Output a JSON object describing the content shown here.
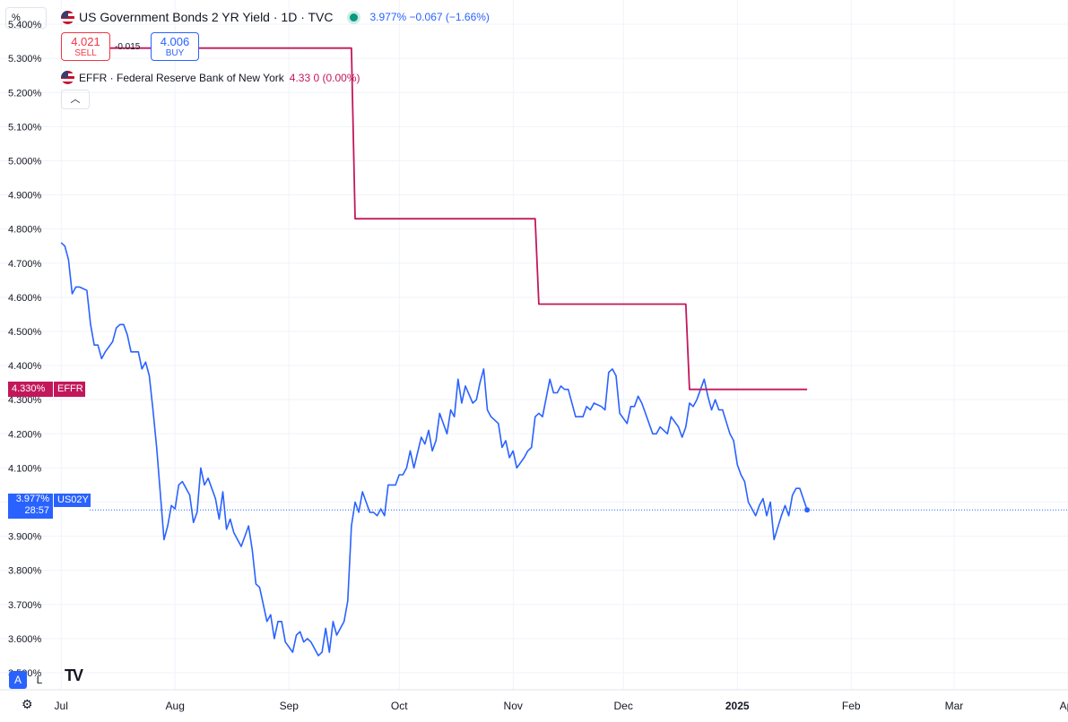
{
  "unit_selector": "%",
  "header": {
    "title": "US Government Bonds 2 YR Yield · 1D · TVC",
    "status_color": "#089981",
    "quote": "3.977%  −0.067 (−1.66%)",
    "quote_color": "#2962ff"
  },
  "trade": {
    "sell_price": "4.021",
    "sell_label": "SELL",
    "spread": "-0.015",
    "buy_price": "4.006",
    "buy_label": "BUY"
  },
  "indicator": {
    "label": "EFFR · Federal Reserve Bank of New York",
    "values": "4.33  0 (0.00%)",
    "color": "#c2185b"
  },
  "collapse_icon": "chevron-up-icon",
  "tags": {
    "effr_value": "4.330%",
    "effr_name": "EFFR",
    "us02y_value": "3.977%",
    "us02y_countdown": "28:57",
    "us02y_name": "US02Y"
  },
  "bottom": {
    "auto_label": "A",
    "log_label": "L",
    "logo_text": "TV",
    "settings_icon": "gear-icon"
  },
  "chart_data": {
    "type": "line",
    "ylim": [
      3.45,
      5.45
    ],
    "y_ticks": [
      3.5,
      3.6,
      3.7,
      3.8,
      3.9,
      4.0,
      4.1,
      4.2,
      4.3,
      4.4,
      4.5,
      4.6,
      4.7,
      4.8,
      4.9,
      5.0,
      5.1,
      5.2,
      5.3,
      5.4
    ],
    "y_tick_labels": [
      "3.500%",
      "3.600%",
      "3.700%",
      "3.800%",
      "3.900%",
      "4.000%",
      "4.100%",
      "4.200%",
      "4.300%",
      "4.400%",
      "4.500%",
      "4.600%",
      "4.700%",
      "4.800%",
      "4.900%",
      "5.000%",
      "5.100%",
      "5.200%",
      "5.300%",
      "5.400%"
    ],
    "x_domain": [
      "2024-06-29",
      "2025-04-01"
    ],
    "x_ticks": [
      {
        "date": "2024-07-01",
        "label": "Jul",
        "bold": false
      },
      {
        "date": "2024-08-01",
        "label": "Aug",
        "bold": false
      },
      {
        "date": "2024-09-01",
        "label": "Sep",
        "bold": false
      },
      {
        "date": "2024-10-01",
        "label": "Oct",
        "bold": false
      },
      {
        "date": "2024-11-01",
        "label": "Nov",
        "bold": false
      },
      {
        "date": "2024-12-01",
        "label": "Dec",
        "bold": false
      },
      {
        "date": "2025-01-01",
        "label": "2025",
        "bold": true
      },
      {
        "date": "2025-02-01",
        "label": "Feb",
        "bold": false
      },
      {
        "date": "2025-03-01",
        "label": "Mar",
        "bold": false
      },
      {
        "date": "2025-04-01",
        "label": "Apr",
        "bold": false
      }
    ],
    "grid": true,
    "series": [
      {
        "name": "US02Y",
        "color": "#2962ff",
        "points": [
          [
            "2024-07-01",
            4.76
          ],
          [
            "2024-07-02",
            4.75
          ],
          [
            "2024-07-03",
            4.71
          ],
          [
            "2024-07-04",
            4.61
          ],
          [
            "2024-07-05",
            4.63
          ],
          [
            "2024-07-06",
            4.63
          ],
          [
            "2024-07-08",
            4.62
          ],
          [
            "2024-07-09",
            4.52
          ],
          [
            "2024-07-10",
            4.46
          ],
          [
            "2024-07-11",
            4.46
          ],
          [
            "2024-07-12",
            4.42
          ],
          [
            "2024-07-13",
            4.44
          ],
          [
            "2024-07-15",
            4.47
          ],
          [
            "2024-07-16",
            4.51
          ],
          [
            "2024-07-17",
            4.52
          ],
          [
            "2024-07-18",
            4.52
          ],
          [
            "2024-07-19",
            4.49
          ],
          [
            "2024-07-20",
            4.44
          ],
          [
            "2024-07-22",
            4.44
          ],
          [
            "2024-07-23",
            4.39
          ],
          [
            "2024-07-24",
            4.41
          ],
          [
            "2024-07-25",
            4.37
          ],
          [
            "2024-07-26",
            4.27
          ],
          [
            "2024-07-27",
            4.16
          ],
          [
            "2024-07-29",
            3.89
          ],
          [
            "2024-07-30",
            3.93
          ],
          [
            "2024-07-31",
            3.99
          ],
          [
            "2024-08-01",
            3.98
          ],
          [
            "2024-08-02",
            4.05
          ],
          [
            "2024-08-03",
            4.06
          ],
          [
            "2024-08-05",
            4.02
          ],
          [
            "2024-08-06",
            3.94
          ],
          [
            "2024-08-07",
            3.97
          ],
          [
            "2024-08-08",
            4.1
          ],
          [
            "2024-08-09",
            4.05
          ],
          [
            "2024-08-10",
            4.07
          ],
          [
            "2024-08-12",
            4.01
          ],
          [
            "2024-08-13",
            3.95
          ],
          [
            "2024-08-14",
            4.03
          ],
          [
            "2024-08-15",
            3.92
          ],
          [
            "2024-08-16",
            3.95
          ],
          [
            "2024-08-17",
            3.91
          ],
          [
            "2024-08-19",
            3.87
          ],
          [
            "2024-08-20",
            3.9
          ],
          [
            "2024-08-21",
            3.93
          ],
          [
            "2024-08-22",
            3.86
          ],
          [
            "2024-08-23",
            3.76
          ],
          [
            "2024-08-24",
            3.75
          ],
          [
            "2024-08-26",
            3.65
          ],
          [
            "2024-08-27",
            3.67
          ],
          [
            "2024-08-28",
            3.6
          ],
          [
            "2024-08-29",
            3.65
          ],
          [
            "2024-08-30",
            3.65
          ],
          [
            "2024-08-31",
            3.59
          ],
          [
            "2024-09-02",
            3.56
          ],
          [
            "2024-09-03",
            3.61
          ],
          [
            "2024-09-04",
            3.62
          ],
          [
            "2024-09-05",
            3.59
          ],
          [
            "2024-09-06",
            3.6
          ],
          [
            "2024-09-07",
            3.59
          ],
          [
            "2024-09-09",
            3.55
          ],
          [
            "2024-09-10",
            3.56
          ],
          [
            "2024-09-11",
            3.63
          ],
          [
            "2024-09-12",
            3.56
          ],
          [
            "2024-09-13",
            3.65
          ],
          [
            "2024-09-14",
            3.61
          ],
          [
            "2024-09-16",
            3.65
          ],
          [
            "2024-09-17",
            3.71
          ],
          [
            "2024-09-18",
            3.93
          ],
          [
            "2024-09-19",
            4.0
          ],
          [
            "2024-09-20",
            3.97
          ],
          [
            "2024-09-21",
            4.03
          ],
          [
            "2024-09-23",
            3.97
          ],
          [
            "2024-09-24",
            3.97
          ],
          [
            "2024-09-25",
            3.96
          ],
          [
            "2024-09-26",
            3.98
          ],
          [
            "2024-09-27",
            3.96
          ],
          [
            "2024-09-28",
            4.05
          ],
          [
            "2024-09-30",
            4.05
          ],
          [
            "2024-10-01",
            4.08
          ],
          [
            "2024-10-02",
            4.08
          ],
          [
            "2024-10-03",
            4.1
          ],
          [
            "2024-10-04",
            4.15
          ],
          [
            "2024-10-05",
            4.1
          ],
          [
            "2024-10-07",
            4.19
          ],
          [
            "2024-10-08",
            4.17
          ],
          [
            "2024-10-09",
            4.21
          ],
          [
            "2024-10-10",
            4.15
          ],
          [
            "2024-10-11",
            4.18
          ],
          [
            "2024-10-12",
            4.26
          ],
          [
            "2024-10-14",
            4.2
          ],
          [
            "2024-10-15",
            4.27
          ],
          [
            "2024-10-16",
            4.25
          ],
          [
            "2024-10-17",
            4.36
          ],
          [
            "2024-10-18",
            4.29
          ],
          [
            "2024-10-19",
            4.34
          ],
          [
            "2024-10-21",
            4.29
          ],
          [
            "2024-10-22",
            4.3
          ],
          [
            "2024-10-23",
            4.35
          ],
          [
            "2024-10-24",
            4.39
          ],
          [
            "2024-10-25",
            4.27
          ],
          [
            "2024-10-26",
            4.25
          ],
          [
            "2024-10-28",
            4.23
          ],
          [
            "2024-10-29",
            4.16
          ],
          [
            "2024-10-30",
            4.18
          ],
          [
            "2024-10-31",
            4.13
          ],
          [
            "2024-11-01",
            4.15
          ],
          [
            "2024-11-02",
            4.1
          ],
          [
            "2024-11-04",
            4.13
          ],
          [
            "2024-11-05",
            4.15
          ],
          [
            "2024-11-06",
            4.16
          ],
          [
            "2024-11-07",
            4.25
          ],
          [
            "2024-11-08",
            4.26
          ],
          [
            "2024-11-09",
            4.25
          ],
          [
            "2024-11-11",
            4.36
          ],
          [
            "2024-11-12",
            4.32
          ],
          [
            "2024-11-13",
            4.32
          ],
          [
            "2024-11-14",
            4.34
          ],
          [
            "2024-11-15",
            4.33
          ],
          [
            "2024-11-16",
            4.33
          ],
          [
            "2024-11-18",
            4.25
          ],
          [
            "2024-11-19",
            4.25
          ],
          [
            "2024-11-20",
            4.25
          ],
          [
            "2024-11-21",
            4.28
          ],
          [
            "2024-11-22",
            4.27
          ],
          [
            "2024-11-23",
            4.29
          ],
          [
            "2024-11-25",
            4.28
          ],
          [
            "2024-11-26",
            4.27
          ],
          [
            "2024-11-27",
            4.38
          ],
          [
            "2024-11-28",
            4.39
          ],
          [
            "2024-11-29",
            4.37
          ],
          [
            "2024-11-30",
            4.26
          ],
          [
            "2024-12-02",
            4.23
          ],
          [
            "2024-12-03",
            4.28
          ],
          [
            "2024-12-04",
            4.28
          ],
          [
            "2024-12-05",
            4.31
          ],
          [
            "2024-12-06",
            4.29
          ],
          [
            "2024-12-07",
            4.26
          ],
          [
            "2024-12-09",
            4.2
          ],
          [
            "2024-12-10",
            4.2
          ],
          [
            "2024-12-11",
            4.22
          ],
          [
            "2024-12-12",
            4.21
          ],
          [
            "2024-12-13",
            4.2
          ],
          [
            "2024-12-14",
            4.25
          ],
          [
            "2024-12-16",
            4.22
          ],
          [
            "2024-12-17",
            4.19
          ],
          [
            "2024-12-18",
            4.22
          ],
          [
            "2024-12-19",
            4.29
          ],
          [
            "2024-12-20",
            4.28
          ],
          [
            "2024-12-21",
            4.3
          ],
          [
            "2024-12-23",
            4.36
          ],
          [
            "2024-12-24",
            4.31
          ],
          [
            "2024-12-25",
            4.27
          ],
          [
            "2024-12-26",
            4.3
          ],
          [
            "2024-12-27",
            4.27
          ],
          [
            "2024-12-28",
            4.27
          ],
          [
            "2024-12-30",
            4.2
          ],
          [
            "2024-12-31",
            4.18
          ],
          [
            "2025-01-01",
            4.11
          ],
          [
            "2025-01-02",
            4.08
          ],
          [
            "2025-01-03",
            4.06
          ],
          [
            "2025-01-04",
            4.0
          ],
          [
            "2025-01-06",
            3.96
          ],
          [
            "2025-01-07",
            3.99
          ],
          [
            "2025-01-08",
            4.01
          ],
          [
            "2025-01-09",
            3.96
          ],
          [
            "2025-01-10",
            4.0
          ],
          [
            "2025-01-11",
            3.89
          ],
          [
            "2025-01-13",
            3.96
          ],
          [
            "2025-01-14",
            3.99
          ],
          [
            "2025-01-15",
            3.96
          ],
          [
            "2025-01-16",
            4.02
          ],
          [
            "2025-01-17",
            4.04
          ],
          [
            "2025-01-18",
            4.04
          ],
          [
            "2025-01-20",
            3.977
          ]
        ]
      },
      {
        "name": "EFFR",
        "color": "#c2185b",
        "step": true,
        "points": [
          [
            "2024-07-01",
            5.33
          ],
          [
            "2024-09-18",
            5.33
          ],
          [
            "2024-09-19",
            4.83
          ],
          [
            "2024-11-07",
            4.83
          ],
          [
            "2024-11-08",
            4.58
          ],
          [
            "2024-12-18",
            4.58
          ],
          [
            "2024-12-19",
            4.33
          ],
          [
            "2025-01-20",
            4.33
          ]
        ]
      }
    ]
  }
}
